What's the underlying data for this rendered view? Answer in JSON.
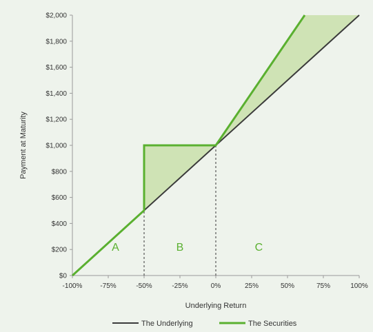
{
  "chart_data": {
    "type": "line",
    "title": "",
    "xlabel": "Underlying Return",
    "ylabel": "Payment at Maturity",
    "x_tick_labels": [
      "-100%",
      "-75%",
      "-50%",
      "-25%",
      "0%",
      "25%",
      "50%",
      "75%",
      "100%"
    ],
    "y_tick_labels": [
      "$0",
      "$200",
      "$400",
      "$600",
      "$800",
      "$1,000",
      "$1,200",
      "$1,400",
      "$1,600",
      "$1,800",
      "$2,000"
    ],
    "xlim": [
      -100,
      100
    ],
    "ylim": [
      0,
      2000
    ],
    "grid": false,
    "legend_position": "bottom",
    "series": [
      {
        "name": "The Underlying",
        "color": "#3a3a3a",
        "points": [
          [
            -100,
            0
          ],
          [
            100,
            2000
          ]
        ]
      },
      {
        "name": "The Securities",
        "color": "#5ab030",
        "points": [
          [
            -100,
            0
          ],
          [
            -50,
            500
          ],
          [
            -50,
            1000
          ],
          [
            0,
            1000
          ],
          [
            62,
            2000
          ]
        ]
      }
    ],
    "shaded_regions": [
      {
        "points": [
          [
            -50,
            500
          ],
          [
            -50,
            1000
          ],
          [
            0,
            1000
          ]
        ],
        "color": "#cfe3b5"
      },
      {
        "points": [
          [
            0,
            1000
          ],
          [
            62,
            2000
          ],
          [
            100,
            2000
          ]
        ],
        "color": "#cfe3b5"
      }
    ],
    "reference_lines": [
      {
        "x": -50,
        "y_top": 1000
      },
      {
        "x": 0,
        "y_top": 1000
      }
    ],
    "region_labels": [
      {
        "text": "A",
        "x": -70,
        "y": 190
      },
      {
        "text": "B",
        "x": -25,
        "y": 190
      },
      {
        "text": "C",
        "x": 30,
        "y": 190
      }
    ],
    "region_label_color": "#5ab030"
  }
}
